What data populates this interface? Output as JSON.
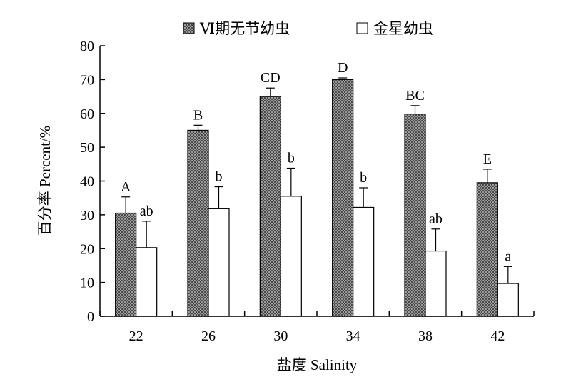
{
  "chart_data": {
    "type": "bar",
    "categories": [
      "22",
      "26",
      "30",
      "34",
      "38",
      "42"
    ],
    "xlabel": "盐度 Salinity",
    "ylabel": "百分率 Percent/%",
    "ylim": [
      0,
      80
    ],
    "yticks": [
      0,
      10,
      20,
      30,
      40,
      50,
      60,
      70,
      80
    ],
    "legend_position": "top",
    "grid": false,
    "series": [
      {
        "name": "Ⅵ期无节幼虫",
        "fill": "checkered-dark",
        "values": [
          30.5,
          55.0,
          65.0,
          70.0,
          59.8,
          39.5
        ],
        "errors": [
          4.8,
          1.5,
          2.5,
          0.5,
          2.5,
          4.0
        ],
        "labels": [
          "A",
          "B",
          "CD",
          "D",
          "BC",
          "E"
        ]
      },
      {
        "name": "金星幼虫",
        "fill": "white",
        "values": [
          20.3,
          31.8,
          35.5,
          32.2,
          19.3,
          9.7
        ],
        "errors": [
          7.8,
          6.5,
          8.3,
          5.8,
          6.5,
          5.0
        ],
        "labels": [
          "ab",
          "b",
          "b",
          "b",
          "ab",
          "a"
        ]
      }
    ]
  }
}
